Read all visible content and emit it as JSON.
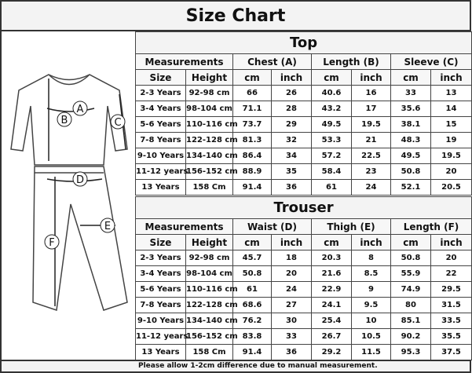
{
  "title": "Size Chart",
  "top": {
    "heading": "Top",
    "groups": [
      "Measurements",
      "Chest (A)",
      "Length (B)",
      "Sleeve (C)"
    ],
    "subheaders": [
      "Size",
      "Height",
      "cm",
      "inch",
      "cm",
      "inch",
      "cm",
      "inch"
    ],
    "rows": [
      [
        "2-3 Years",
        "92-98 cm",
        "66",
        "26",
        "40.6",
        "16",
        "33",
        "13"
      ],
      [
        "3-4 Years",
        "98-104 cm",
        "71.1",
        "28",
        "43.2",
        "17",
        "35.6",
        "14"
      ],
      [
        "5-6 Years",
        "110-116 cm",
        "73.7",
        "29",
        "49.5",
        "19.5",
        "38.1",
        "15"
      ],
      [
        "7-8 Years",
        "122-128 cm",
        "81.3",
        "32",
        "53.3",
        "21",
        "48.3",
        "19"
      ],
      [
        "9-10 Years",
        "134-140 cm",
        "86.4",
        "34",
        "57.2",
        "22.5",
        "49.5",
        "19.5"
      ],
      [
        "11-12 years",
        "156-152 cm",
        "88.9",
        "35",
        "58.4",
        "23",
        "50.8",
        "20"
      ],
      [
        "13 Years",
        "158 Cm",
        "91.4",
        "36",
        "61",
        "24",
        "52.1",
        "20.5"
      ]
    ]
  },
  "trouser": {
    "heading": "Trouser",
    "groups": [
      "Measurements",
      "Waist (D)",
      "Thigh (E)",
      "Length (F)"
    ],
    "subheaders": [
      "Size",
      "Height",
      "cm",
      "inch",
      "cm",
      "inch",
      "cm",
      "inch"
    ],
    "rows": [
      [
        "2-3 Years",
        "92-98 cm",
        "45.7",
        "18",
        "20.3",
        "8",
        "50.8",
        "20"
      ],
      [
        "3-4 Years",
        "98-104 cm",
        "50.8",
        "20",
        "21.6",
        "8.5",
        "55.9",
        "22"
      ],
      [
        "5-6 Years",
        "110-116 cm",
        "61",
        "24",
        "22.9",
        "9",
        "74.9",
        "29.5"
      ],
      [
        "7-8 Years",
        "122-128 cm",
        "68.6",
        "27",
        "24.1",
        "9.5",
        "80",
        "31.5"
      ],
      [
        "9-10 Years",
        "134-140 cm",
        "76.2",
        "30",
        "25.4",
        "10",
        "85.1",
        "33.5"
      ],
      [
        "11-12 years",
        "156-152 cm",
        "83.8",
        "33",
        "26.7",
        "10.5",
        "90.2",
        "35.5"
      ],
      [
        "13 Years",
        "158 Cm",
        "91.4",
        "36",
        "29.2",
        "11.5",
        "95.3",
        "37.5"
      ]
    ]
  },
  "illustration": {
    "labels": [
      "A",
      "B",
      "C",
      "D",
      "E",
      "F"
    ]
  },
  "footer": "Please allow 1-2cm difference due to manual measurement."
}
